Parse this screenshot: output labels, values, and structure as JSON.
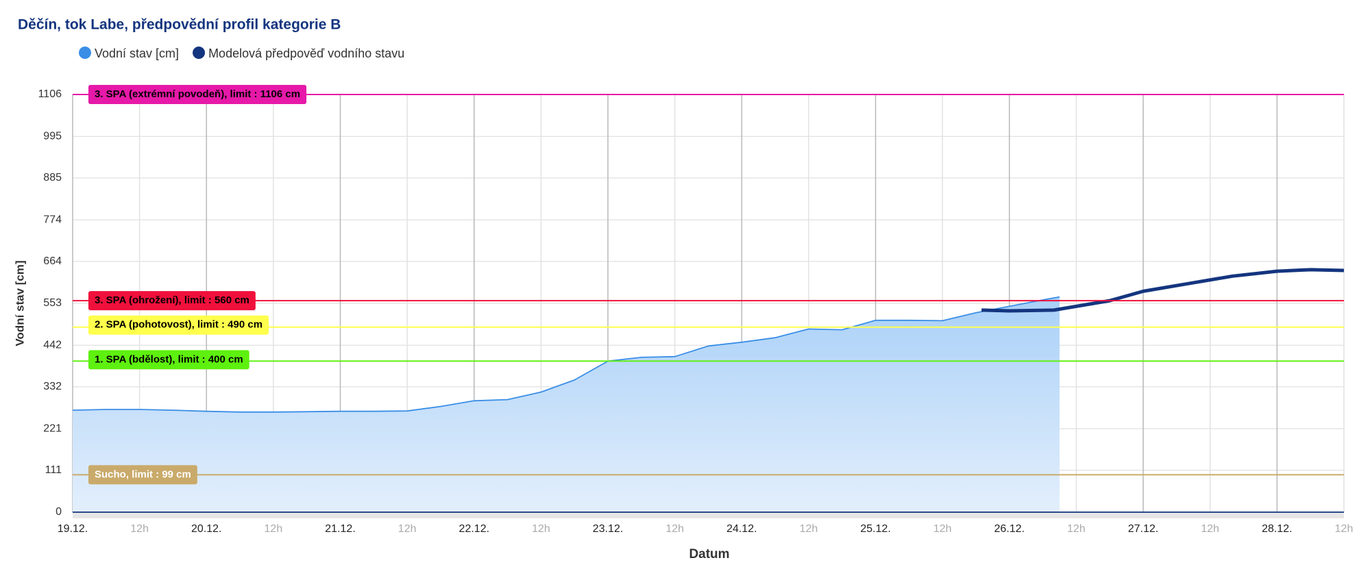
{
  "chart_data": {
    "type": "line",
    "title": "Děčín, tok Labe, předpovědní profil kategorie B",
    "x_label": "Datum",
    "y_label": "Vodní stav [cm]",
    "xlim": [
      0,
      228
    ],
    "xticks": [
      {
        "value": 0,
        "label": "19.12."
      },
      {
        "value": 12,
        "label": "12h"
      },
      {
        "value": 24,
        "label": "20.12."
      },
      {
        "value": 36,
        "label": "12h"
      },
      {
        "value": 48,
        "label": "21.12."
      },
      {
        "value": 60,
        "label": "12h"
      },
      {
        "value": 72,
        "label": "22.12."
      },
      {
        "value": 84,
        "label": "12h"
      },
      {
        "value": 96,
        "label": "23.12."
      },
      {
        "value": 108,
        "label": "12h"
      },
      {
        "value": 120,
        "label": "24.12."
      },
      {
        "value": 132,
        "label": "12h"
      },
      {
        "value": 144,
        "label": "25.12."
      },
      {
        "value": 156,
        "label": "12h"
      },
      {
        "value": 168,
        "label": "26.12."
      },
      {
        "value": 180,
        "label": "12h"
      },
      {
        "value": 192,
        "label": "27.12."
      },
      {
        "value": 204,
        "label": "12h"
      },
      {
        "value": 216,
        "label": "28.12."
      },
      {
        "value": 228,
        "label": "12h"
      }
    ],
    "ylim": [
      0,
      1106
    ],
    "yticks": [
      0,
      111,
      221,
      332,
      442,
      553,
      664,
      774,
      885,
      995,
      1106
    ],
    "grid": true,
    "series": [
      {
        "name": "Vodní stav [cm]",
        "color": "#3a8ee6",
        "x": [
          0,
          6,
          12,
          18,
          24,
          30,
          36,
          42,
          48,
          54,
          60,
          66,
          72,
          78,
          84,
          90,
          96,
          102,
          108,
          114,
          120,
          126,
          132,
          138,
          144,
          150,
          156,
          162,
          168,
          174,
          177
        ],
        "values": [
          270,
          272,
          272,
          270,
          267,
          265,
          265,
          266,
          267,
          267,
          268,
          280,
          295,
          298,
          318,
          350,
          400,
          410,
          412,
          440,
          450,
          462,
          485,
          483,
          508,
          508,
          507,
          528,
          545,
          562,
          570
        ]
      },
      {
        "name": "Modelová předpověď vodního stavu",
        "color": "#14357f",
        "x": [
          163,
          168,
          176,
          180,
          186,
          192,
          200,
          208,
          216,
          222,
          228
        ],
        "values": [
          535,
          533,
          535,
          545,
          560,
          585,
          605,
          625,
          638,
          642,
          640
        ]
      }
    ],
    "thresholds": [
      {
        "label": "3. SPA (extrémní povodeň), limit : 1106 cm",
        "value": 1106,
        "color": "#e619a8"
      },
      {
        "label": "3. SPA (ohrožení), limit : 560 cm",
        "value": 560,
        "color": "#f0103c"
      },
      {
        "label": "2. SPA (pohotovost), limit : 490 cm",
        "value": 490,
        "color": "#ffff4d"
      },
      {
        "label": "1. SPA (bdělost), limit : 400 cm",
        "value": 400,
        "color": "#5ef00f"
      },
      {
        "label": "Sucho, limit : 99 cm",
        "value": 99,
        "color": "#c9aa6a"
      }
    ]
  }
}
